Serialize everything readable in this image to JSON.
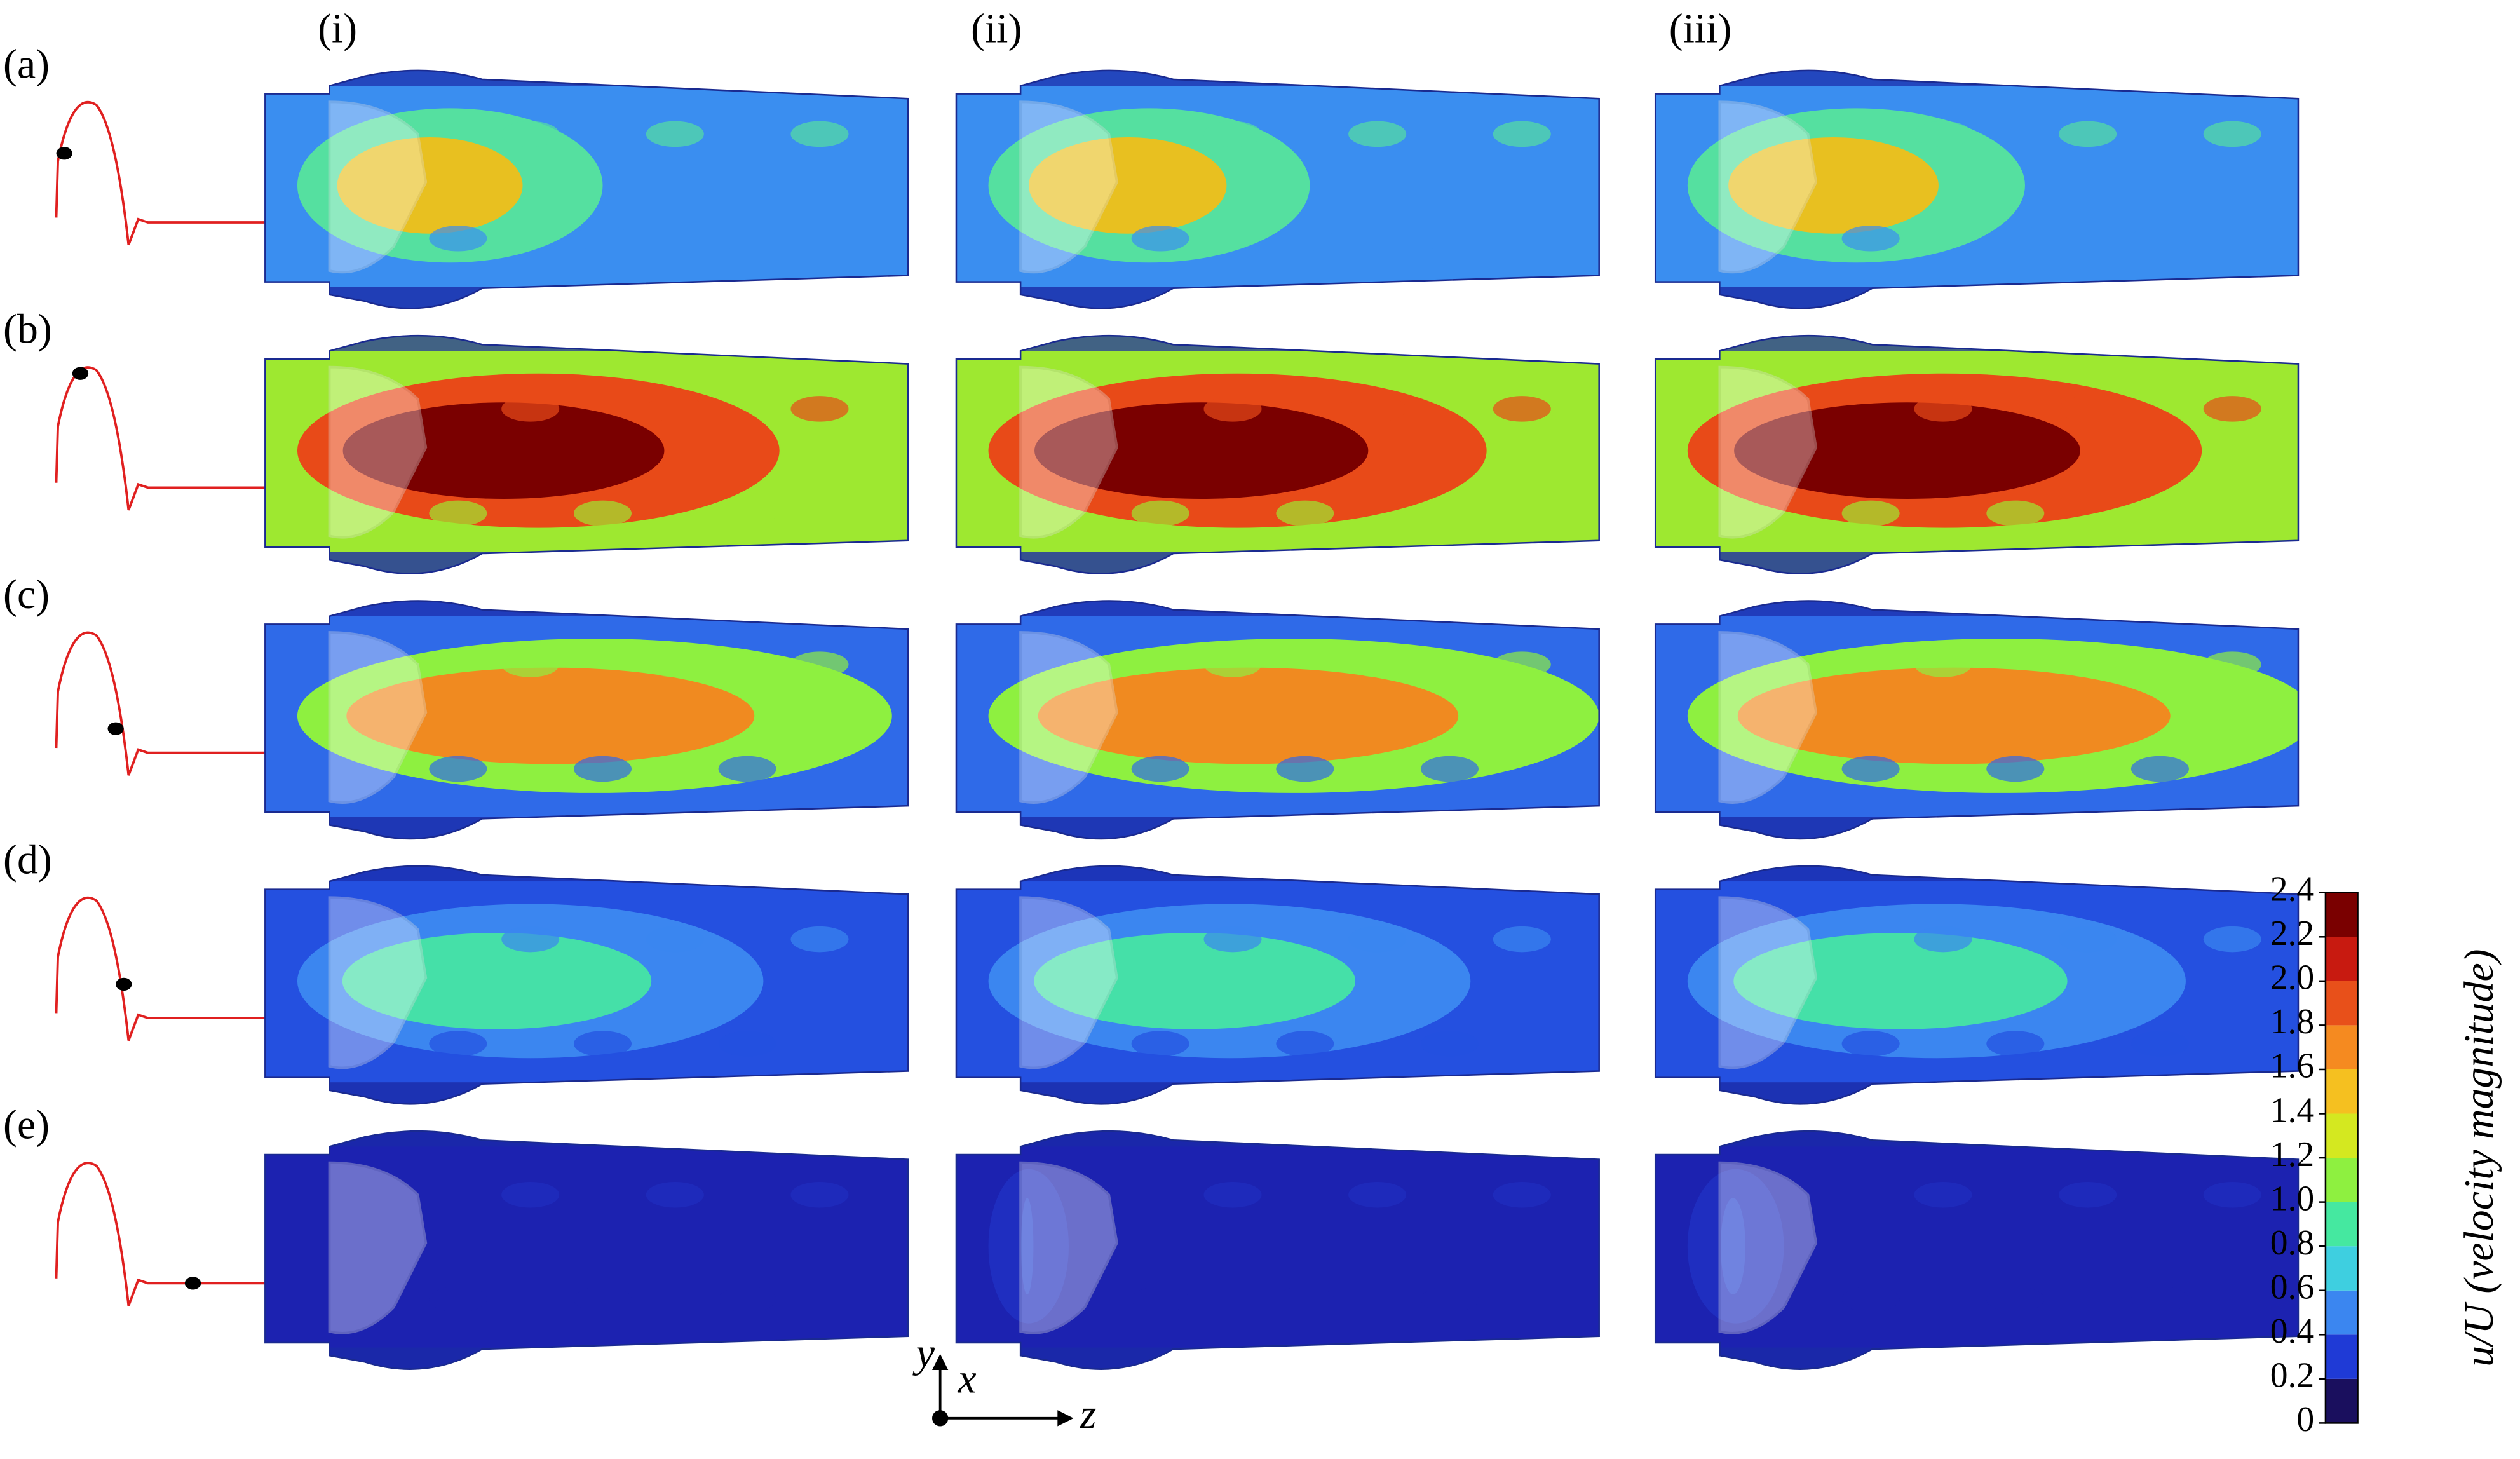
{
  "row_labels": [
    "(a)",
    "(b)",
    "(c)",
    "(d)",
    "(e)"
  ],
  "column_labels": [
    "(i)",
    "(ii)",
    "(iii)"
  ],
  "colorbar": {
    "label": "u/U (velocity magnitude)",
    "lim": [
      0,
      2.4
    ],
    "ticks": [
      0,
      0.2,
      0.4,
      0.6,
      0.8,
      {
        "value": 1,
        "label": "1.0"
      },
      1.2,
      1.4,
      1.6,
      1.8,
      {
        "value": 2,
        "label": "2.0"
      },
      2.2,
      2.4
    ]
  },
  "axes": {
    "y": "y",
    "x": "x",
    "z": "z"
  }
}
